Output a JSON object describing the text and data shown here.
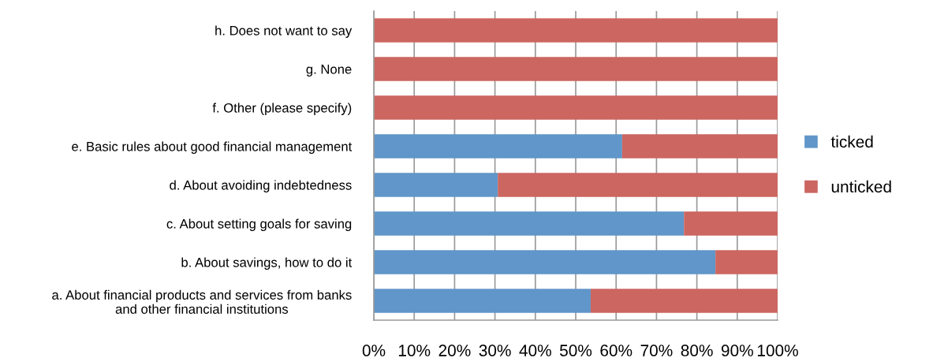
{
  "chart_data": {
    "type": "bar",
    "orientation": "horizontal",
    "stacked": true,
    "categories": [
      "h. Does not want to say",
      "g. None",
      "f. Other (please specify)",
      "e. Basic rules about good financial management",
      "d. About avoiding indebtedness",
      "c. About setting goals for saving",
      "b. About savings, how to do it",
      "a. About financial products and services from banks\nand other financial institutions"
    ],
    "series": [
      {
        "name": "ticked",
        "color": "#6096c9",
        "values": [
          0,
          0,
          0,
          61.5,
          30.7,
          76.8,
          84.6,
          53.7
        ]
      },
      {
        "name": "unticked",
        "color": "#cc6660",
        "values": [
          100,
          100,
          100,
          38.5,
          69.3,
          23.2,
          15.4,
          46.3
        ]
      }
    ],
    "xlim": [
      0,
      100
    ],
    "xticks": [
      {
        "value": 0,
        "label": "0%"
      },
      {
        "value": 10,
        "label": "10%"
      },
      {
        "value": 20,
        "label": "20%"
      },
      {
        "value": 30,
        "label": "30%"
      },
      {
        "value": 40,
        "label": "40%"
      },
      {
        "value": 50,
        "label": "50%"
      },
      {
        "value": 60,
        "label": "60%"
      },
      {
        "value": 70,
        "label": "70%"
      },
      {
        "value": 80,
        "label": "80%"
      },
      {
        "value": 90,
        "label": "90%"
      },
      {
        "value": 100,
        "label": "100%"
      }
    ],
    "grid": "x",
    "legend": "right"
  }
}
